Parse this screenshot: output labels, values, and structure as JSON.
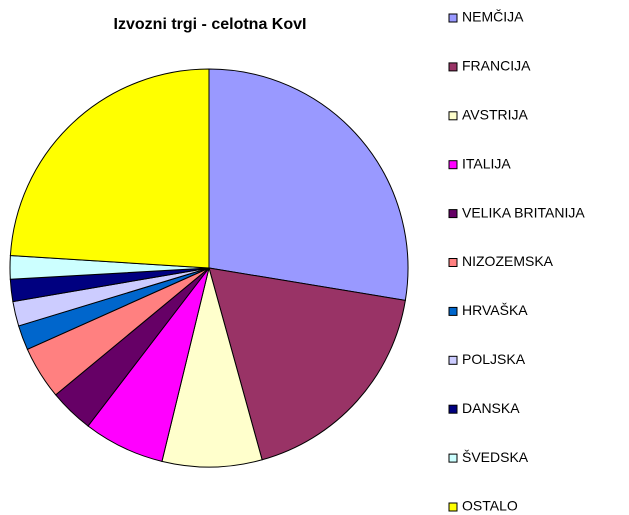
{
  "chart_data": {
    "type": "pie",
    "title": "Izvozni trgi - celotna KovI",
    "categories": [
      "NEMČIJA",
      "FRANCIJA",
      "AVSTRIJA",
      "ITALIJA",
      "VELIKA BRITANIJA",
      "NIZOZEMSKA",
      "HRVAŠKA",
      "POLJSKA",
      "DANSKA",
      "ŠVEDSKA",
      "OSTALO"
    ],
    "values": [
      27.6,
      18.1,
      8.1,
      6.6,
      3.6,
      4.3,
      2.0,
      2.0,
      1.8,
      1.9,
      24.0
    ],
    "colors": [
      "#9999ff",
      "#993366",
      "#ffffcc",
      "#ff00ff",
      "#660066",
      "#ff8080",
      "#0066cc",
      "#ccccff",
      "#000080",
      "#ccffff",
      "#ffff00"
    ]
  }
}
